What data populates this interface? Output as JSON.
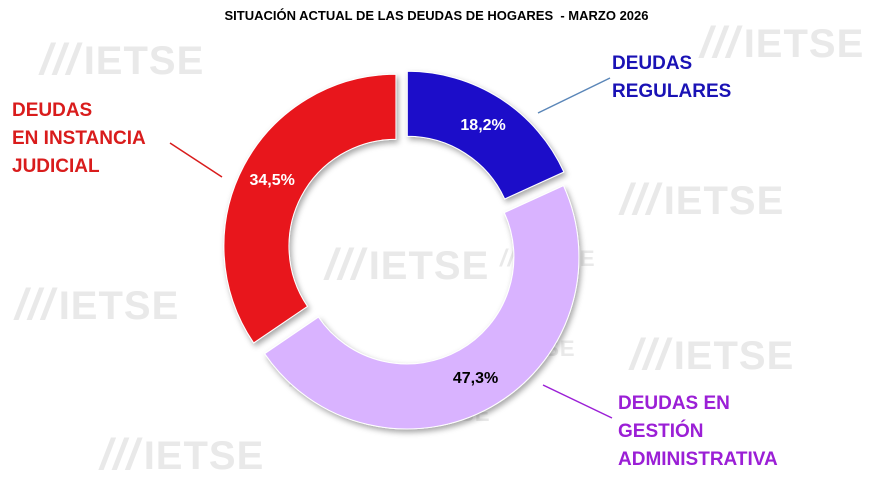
{
  "chart_data": {
    "type": "pie",
    "title": "SITUACIÓN ACTUAL DE LAS DEUDAS DE HOGARES  - MARZO 2026",
    "categories": [
      "DEUDAS REGULARES",
      "DEUDAS EN GESTIÓN ADMINISTRATIVA",
      "DEUDAS EN INSTANCIA JUDICIAL"
    ],
    "values": [
      18.2,
      47.3,
      34.5
    ],
    "value_labels": [
      "18,2%",
      "47,3%",
      "34,5%"
    ],
    "labels_lines": [
      [
        "DEUDAS",
        "REGULARES"
      ],
      [
        "DEUDAS EN",
        "GESTIÓN",
        "ADMINISTRATIVA"
      ],
      [
        "DEUDAS",
        "EN INSTANCIA",
        "JUDICIAL"
      ]
    ],
    "colors": [
      "#1a0fc9",
      "#d9b3ff",
      "#e8121c"
    ],
    "label_colors": [
      "#1a12b5",
      "#9b1fd6",
      "#d91c1c"
    ],
    "value_label_colors": [
      "#ffffff",
      "#000000",
      "#ffffff"
    ],
    "donut": true,
    "exploded": true
  },
  "watermark": "IETSE"
}
